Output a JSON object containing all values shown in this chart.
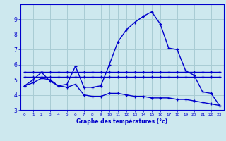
{
  "title": "Graphe des températures (°c)",
  "background_color": "#cde8ee",
  "grid_color": "#a8ccd4",
  "line_color": "#0000cc",
  "x_values": [
    0,
    1,
    2,
    3,
    4,
    5,
    6,
    7,
    8,
    9,
    10,
    11,
    12,
    13,
    14,
    15,
    16,
    17,
    18,
    19,
    20,
    21,
    22,
    23
  ],
  "max_temps": [
    4.6,
    5.0,
    5.5,
    4.9,
    4.6,
    4.7,
    5.9,
    4.5,
    4.5,
    4.6,
    6.0,
    7.5,
    8.3,
    8.8,
    9.2,
    9.5,
    8.7,
    7.1,
    7.0,
    5.6,
    5.3,
    4.2,
    4.1,
    3.3
  ],
  "mean_high": [
    5.5,
    5.5,
    5.5,
    5.5,
    5.5,
    5.5,
    5.5,
    5.5,
    5.5,
    5.5,
    5.5,
    5.5,
    5.5,
    5.5,
    5.5,
    5.5,
    5.5,
    5.5,
    5.5,
    5.5,
    5.5,
    5.5,
    5.5,
    5.5
  ],
  "mean_low": [
    5.2,
    5.2,
    5.2,
    5.2,
    5.2,
    5.2,
    5.2,
    5.2,
    5.2,
    5.2,
    5.2,
    5.2,
    5.2,
    5.2,
    5.2,
    5.2,
    5.2,
    5.2,
    5.2,
    5.2,
    5.2,
    5.2,
    5.2,
    5.2
  ],
  "min_temps": [
    4.6,
    4.8,
    5.1,
    5.0,
    4.6,
    4.5,
    4.7,
    4.0,
    3.9,
    3.9,
    4.1,
    4.1,
    4.0,
    3.9,
    3.9,
    3.8,
    3.8,
    3.8,
    3.7,
    3.7,
    3.6,
    3.5,
    3.4,
    3.3
  ],
  "ylim": [
    3.0,
    10.0
  ],
  "xlim_min": -0.5,
  "xlim_max": 23.5,
  "yticks": [
    3,
    4,
    5,
    6,
    7,
    8,
    9
  ],
  "xticks": [
    0,
    1,
    2,
    3,
    4,
    5,
    6,
    7,
    8,
    9,
    10,
    11,
    12,
    13,
    14,
    15,
    16,
    17,
    18,
    19,
    20,
    21,
    22,
    23
  ],
  "xlabel_fontsize": 5.5,
  "tick_fontsize_x": 4.2,
  "tick_fontsize_y": 5.5
}
